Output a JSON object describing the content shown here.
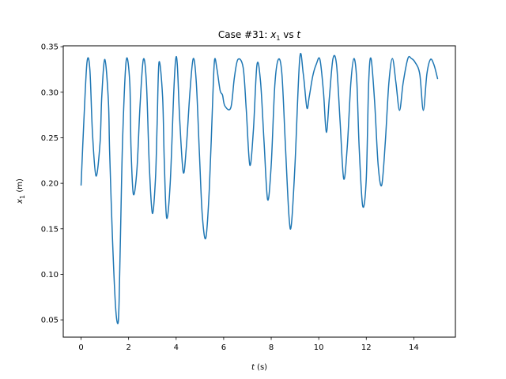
{
  "chart_data": {
    "type": "line",
    "title": {
      "prefix": "Case #31: ",
      "var": "x",
      "var_sub": "1",
      "middle": " vs ",
      "var2": "t"
    },
    "xlabel": {
      "var": "t",
      "unit": " (s)"
    },
    "ylabel": {
      "var": "x",
      "sub": "1",
      "unit": " (m)"
    },
    "xlim": [
      -0.75,
      15.75
    ],
    "ylim": [
      0.031,
      0.351
    ],
    "xticks": [
      0,
      2,
      4,
      6,
      8,
      10,
      12,
      14
    ],
    "xtick_labels": [
      "0",
      "2",
      "4",
      "6",
      "8",
      "10",
      "12",
      "14"
    ],
    "yticks": [
      0.05,
      0.1,
      0.15,
      0.2,
      0.25,
      0.3,
      0.35
    ],
    "ytick_labels": [
      "0.05",
      "0.10",
      "0.15",
      "0.20",
      "0.25",
      "0.30",
      "0.35"
    ],
    "grid": false,
    "legend": "none",
    "line_color": "#1f77b4",
    "series": [
      {
        "x": [
          0.0,
          0.12,
          0.25,
          0.37,
          0.48,
          0.63,
          0.8,
          0.87,
          1.0,
          1.15,
          1.2,
          1.32,
          1.45,
          1.55,
          1.6,
          1.66,
          1.75,
          1.9,
          2.05,
          2.1,
          2.2,
          2.35,
          2.48,
          2.62,
          2.75,
          2.87,
          3.0,
          3.13,
          3.2,
          3.28,
          3.43,
          3.5,
          3.6,
          3.75,
          3.9,
          3.98,
          4.05,
          4.15,
          4.3,
          4.43,
          4.58,
          4.72,
          4.85,
          4.98,
          5.1,
          5.25,
          5.4,
          5.55,
          5.62,
          5.72,
          5.85,
          5.95,
          6.05,
          6.3,
          6.45,
          6.6,
          6.82,
          6.95,
          7.1,
          7.25,
          7.4,
          7.55,
          7.7,
          7.85,
          8.0,
          8.15,
          8.3,
          8.45,
          8.6,
          8.75,
          8.85,
          9.0,
          9.2,
          9.35,
          9.5,
          9.6,
          9.75,
          9.9,
          10.05,
          10.2,
          10.32,
          10.45,
          10.6,
          10.75,
          10.9,
          11.05,
          11.2,
          11.35,
          11.48,
          11.6,
          11.7,
          11.85,
          12.0,
          12.1,
          12.2,
          12.35,
          12.5,
          12.65,
          12.8,
          12.95,
          13.1,
          13.25,
          13.4,
          13.55,
          13.75,
          13.9,
          14.05,
          14.25,
          14.4,
          14.55,
          14.7,
          14.85,
          15.0
        ],
        "values": [
          0.198,
          0.27,
          0.333,
          0.325,
          0.255,
          0.208,
          0.245,
          0.295,
          0.336,
          0.29,
          0.236,
          0.14,
          0.065,
          0.046,
          0.07,
          0.145,
          0.25,
          0.335,
          0.31,
          0.24,
          0.188,
          0.215,
          0.285,
          0.336,
          0.31,
          0.22,
          0.167,
          0.205,
          0.265,
          0.333,
          0.295,
          0.225,
          0.162,
          0.2,
          0.3,
          0.336,
          0.33,
          0.27,
          0.212,
          0.24,
          0.3,
          0.337,
          0.31,
          0.232,
          0.165,
          0.14,
          0.196,
          0.3,
          0.336,
          0.325,
          0.302,
          0.297,
          0.285,
          0.283,
          0.316,
          0.336,
          0.327,
          0.281,
          0.22,
          0.258,
          0.33,
          0.312,
          0.245,
          0.182,
          0.22,
          0.307,
          0.336,
          0.32,
          0.24,
          0.163,
          0.155,
          0.22,
          0.337,
          0.32,
          0.283,
          0.295,
          0.318,
          0.331,
          0.336,
          0.3,
          0.256,
          0.295,
          0.337,
          0.33,
          0.267,
          0.205,
          0.24,
          0.31,
          0.337,
          0.313,
          0.24,
          0.175,
          0.205,
          0.31,
          0.337,
          0.29,
          0.22,
          0.198,
          0.245,
          0.31,
          0.337,
          0.31,
          0.28,
          0.31,
          0.337,
          0.337,
          0.333,
          0.32,
          0.28,
          0.32,
          0.336,
          0.33,
          0.315
        ]
      }
    ]
  }
}
